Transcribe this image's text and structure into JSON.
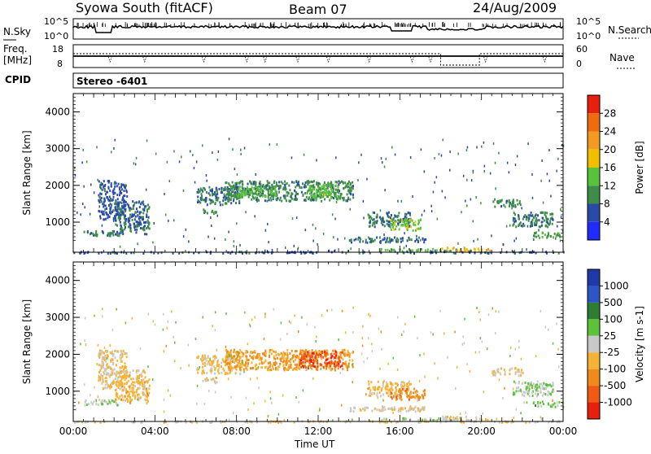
{
  "header": {
    "station": "Syowa South (fitACF)",
    "beam": "Beam 07",
    "date": "24/Aug/2009"
  },
  "noise_panel": {
    "left_label": "N.Sky",
    "right_label": "N.Search",
    "left_ticks": [
      "10^5",
      "10^0"
    ],
    "right_ticks": [
      "10^5",
      "10^0"
    ]
  },
  "freq_panel": {
    "left_label_1": "Freq.",
    "left_label_2": "[MHz]",
    "right_label": "Nave",
    "left_ticks": [
      "18",
      "8"
    ],
    "right_ticks": [
      "60",
      "0"
    ]
  },
  "cpid": {
    "label": "CPID",
    "value": "Stereo -6401"
  },
  "colors": {
    "power": [
      "#1f2bff",
      "#2a4aa8",
      "#3d8c4a",
      "#58c33a",
      "#f0c000",
      "#f39a22",
      "#f06a10",
      "#e81e0e"
    ],
    "velocity": [
      "#1e3aa8",
      "#2d55c8",
      "#2e7d32",
      "#5cc23a",
      "#c8c8c8",
      "#f5b335",
      "#f08a1a",
      "#f05a12",
      "#e81e0e"
    ]
  },
  "chart_data": [
    {
      "type": "heatmap",
      "title": "Power",
      "xlabel": "",
      "ylabel": "Slant Range [km]",
      "x_ticks": [
        "00:00",
        "04:00",
        "08:00",
        "12:00",
        "16:00",
        "20:00",
        "00:00"
      ],
      "y_ticks": [
        "4000",
        "3000",
        "2000",
        "1000"
      ],
      "ylim": [
        180,
        4500
      ],
      "colorbar": {
        "label": "Power [dB]",
        "ticks": [
          "4",
          "8",
          "12",
          "16",
          "20",
          "24",
          "28"
        ],
        "range": [
          0,
          30
        ]
      },
      "regions": [
        {
          "t": [
            1.2,
            2.6
          ],
          "r": [
            1100,
            2150
          ],
          "v": 6
        },
        {
          "t": [
            2.0,
            3.7
          ],
          "r": [
            700,
            1600
          ],
          "v": 7
        },
        {
          "t": [
            0.5,
            2.2
          ],
          "r": [
            650,
            800
          ],
          "v": 9
        },
        {
          "t": [
            6.3,
            7.1
          ],
          "r": [
            1250,
            1400
          ],
          "v": 10
        },
        {
          "t": [
            6.0,
            8.2
          ],
          "r": [
            1500,
            2000
          ],
          "v": 8
        },
        {
          "t": [
            7.4,
            13.7
          ],
          "r": [
            1600,
            2150
          ],
          "v": 9
        },
        {
          "t": [
            8.0,
            10.0
          ],
          "r": [
            1700,
            2000
          ],
          "v": 12
        },
        {
          "t": [
            11.5,
            13.0
          ],
          "r": [
            1650,
            2050
          ],
          "v": 13
        },
        {
          "t": [
            14.4,
            16.5
          ],
          "r": [
            900,
            1300
          ],
          "v": 8
        },
        {
          "t": [
            13.5,
            17.3
          ],
          "r": [
            480,
            620
          ],
          "v": 8
        },
        {
          "t": [
            15.5,
            17.0
          ],
          "r": [
            800,
            1100
          ],
          "v": 14
        },
        {
          "t": [
            15.0,
            19.0
          ],
          "r": [
            230,
            300
          ],
          "v": 12
        },
        {
          "t": [
            18.0,
            20.4
          ],
          "r": [
            240,
            340
          ],
          "v": 18
        },
        {
          "t": [
            20.5,
            22.0
          ],
          "r": [
            1450,
            1650
          ],
          "v": 9
        },
        {
          "t": [
            21.5,
            23.5
          ],
          "r": [
            900,
            1300
          ],
          "v": 8
        },
        {
          "t": [
            22.5,
            24.0
          ],
          "r": [
            600,
            750
          ],
          "v": 11
        },
        {
          "t": [
            0.0,
            24.0
          ],
          "r": [
            180,
            220
          ],
          "v": 6
        }
      ]
    },
    {
      "type": "heatmap",
      "title": "Velocity",
      "xlabel": "Time UT",
      "ylabel": "Slant Range [km]",
      "x_ticks": [
        "00:00",
        "04:00",
        "08:00",
        "12:00",
        "16:00",
        "20:00",
        "00:00"
      ],
      "y_ticks": [
        "4000",
        "3000",
        "2000",
        "1000"
      ],
      "ylim": [
        180,
        4500
      ],
      "colorbar": {
        "label": "Velocity [m s-1]",
        "ticks": [
          "1000",
          "500",
          "100",
          "25",
          "-25",
          "-100",
          "-500",
          "-1000"
        ],
        "range": [
          -1000,
          1000
        ]
      },
      "regions": [
        {
          "t": [
            1.2,
            2.6
          ],
          "r": [
            1100,
            2150
          ],
          "v": -150
        },
        {
          "t": [
            2.0,
            3.7
          ],
          "r": [
            700,
            1600
          ],
          "v": -200
        },
        {
          "t": [
            0.5,
            2.2
          ],
          "r": [
            650,
            800
          ],
          "v": 60
        },
        {
          "t": [
            6.3,
            7.1
          ],
          "r": [
            1250,
            1400
          ],
          "v": -120
        },
        {
          "t": [
            6.0,
            8.2
          ],
          "r": [
            1500,
            2000
          ],
          "v": -180
        },
        {
          "t": [
            7.4,
            13.7
          ],
          "r": [
            1600,
            2150
          ],
          "v": -350
        },
        {
          "t": [
            11.0,
            13.2
          ],
          "r": [
            1650,
            2100
          ],
          "v": -700
        },
        {
          "t": [
            14.4,
            16.5
          ],
          "r": [
            900,
            1300
          ],
          "v": -200
        },
        {
          "t": [
            13.5,
            17.3
          ],
          "r": [
            480,
            620
          ],
          "v": -80
        },
        {
          "t": [
            15.5,
            17.2
          ],
          "r": [
            800,
            1100
          ],
          "v": -450
        },
        {
          "t": [
            15.0,
            19.0
          ],
          "r": [
            230,
            300
          ],
          "v": 40
        },
        {
          "t": [
            18.0,
            20.4
          ],
          "r": [
            240,
            340
          ],
          "v": -60
        },
        {
          "t": [
            20.5,
            22.0
          ],
          "r": [
            1450,
            1650
          ],
          "v": -120
        },
        {
          "t": [
            21.5,
            23.5
          ],
          "r": [
            900,
            1300
          ],
          "v": 80
        },
        {
          "t": [
            22.5,
            24.0
          ],
          "r": [
            600,
            750
          ],
          "v": 200
        },
        {
          "t": [
            0.0,
            24.0
          ],
          "r": [
            180,
            220
          ],
          "v": -60
        }
      ]
    }
  ]
}
